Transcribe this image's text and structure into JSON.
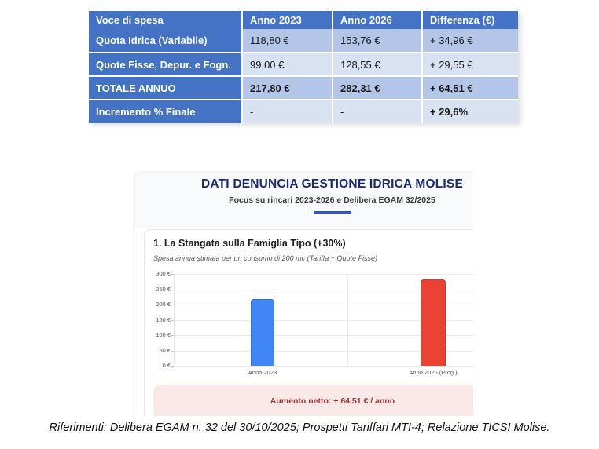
{
  "table": {
    "headers": [
      "Voce di spesa",
      "Anno 2023",
      "Anno 2026",
      "Differenza (€)"
    ],
    "rows": [
      {
        "label": "Quota Idrica (Variabile)",
        "cells": [
          "118,80 €",
          "153,76 €",
          "+ 34,96 €"
        ],
        "bold_cells": []
      },
      {
        "label": "Quote Fisse, Depur. e Fogn.",
        "cells": [
          "99,00 €",
          "128,55 €",
          "+ 29,55 €"
        ],
        "bold_cells": []
      },
      {
        "label": "TOTALE ANNUO",
        "cells": [
          "217,80 €",
          "282,31 €",
          "+ 64,51 €"
        ],
        "bold_cells": [
          0,
          1,
          2
        ]
      },
      {
        "label": "Incremento % Finale",
        "cells": [
          "-",
          "-",
          "+ 29,6%"
        ],
        "bold_cells": [
          2
        ]
      }
    ]
  },
  "embed": {
    "title": "DATI DENUNCIA GESTIONE IDRICA MOLISE",
    "subtitle": "Focus su rincari 2023-2026 e Delibera EGAM 32/2025",
    "section_title": "1. La Stangata sulla Famiglia Tipo (+30%)",
    "section_subtitle": "Spesa annua stimata per un consumo di 200 mc (Tariffa + Quote Fisse)",
    "banner": "Aumento netto: + 64,51 € / anno"
  },
  "chart_data": {
    "type": "bar",
    "title": "1. La Stangata sulla Famiglia Tipo (+30%)",
    "subtitle": "Spesa annua stimata per un consumo di 200 mc (Tariffa + Quote Fisse)",
    "categories": [
      "Anno 2023",
      "Anno 2026 (Prog.)"
    ],
    "values": [
      217.8,
      282.31
    ],
    "bar_colors": [
      "#4285F4",
      "#EA4335"
    ],
    "bar_border_colors": [
      "#2F6FD8",
      "#C93A32"
    ],
    "ylim": [
      0,
      300
    ],
    "yticks": [
      0,
      50,
      100,
      150,
      200,
      250,
      300
    ],
    "ytick_suffix": " €",
    "grid": true,
    "legend": false,
    "annotation": "Aumento netto: + 64,51 € / anno"
  },
  "caption": "Riferimenti: Delibera EGAM n. 32 del 30/10/2025; Prospetti Tariffari MTI-4; Relazione TICSI Molise.",
  "colors": {
    "table_header_blue": "#4472C4",
    "table_band_dark": "#B4C6E7",
    "table_band_light": "#D9E2F2",
    "title_navy": "#1A2A6C",
    "divider_blue": "#2E55CC",
    "banner_bg": "#FBE9E7",
    "banner_text": "#A03434",
    "bar_blue": "#4285F4",
    "bar_red": "#EA4335"
  }
}
